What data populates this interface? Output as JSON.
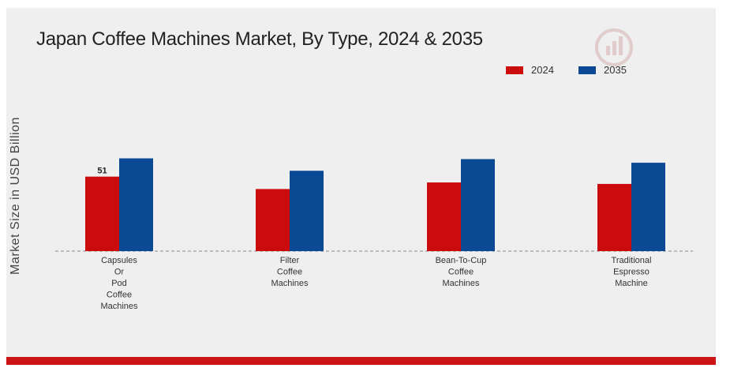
{
  "chart_data": {
    "type": "bar",
    "title": "Japan Coffee Machines Market, By Type, 2024 & 2035",
    "ylabel": "Market Size in USD Billion",
    "xlabel": "",
    "categories": [
      [
        "Capsules",
        "Or",
        "Pod",
        "Coffee",
        "Machines"
      ],
      [
        "Filter",
        "Coffee",
        "Machines"
      ],
      [
        "Bean-To-Cup",
        "Coffee",
        "Machines"
      ],
      [
        "Traditional",
        "Espresso",
        "Machine"
      ]
    ],
    "series": [
      {
        "name": "2024",
        "color": "#cc0c0c",
        "values": [
          51,
          42.5,
          47,
          46
        ]
      },
      {
        "name": "2035",
        "color": "#0a4a94",
        "values": [
          63.5,
          55,
          63,
          60.5
        ]
      }
    ],
    "data_labels": [
      {
        "series": 0,
        "index": 0,
        "text": "51"
      }
    ],
    "ylim": [
      0,
      100
    ],
    "grid": false,
    "legend": "top-right"
  }
}
